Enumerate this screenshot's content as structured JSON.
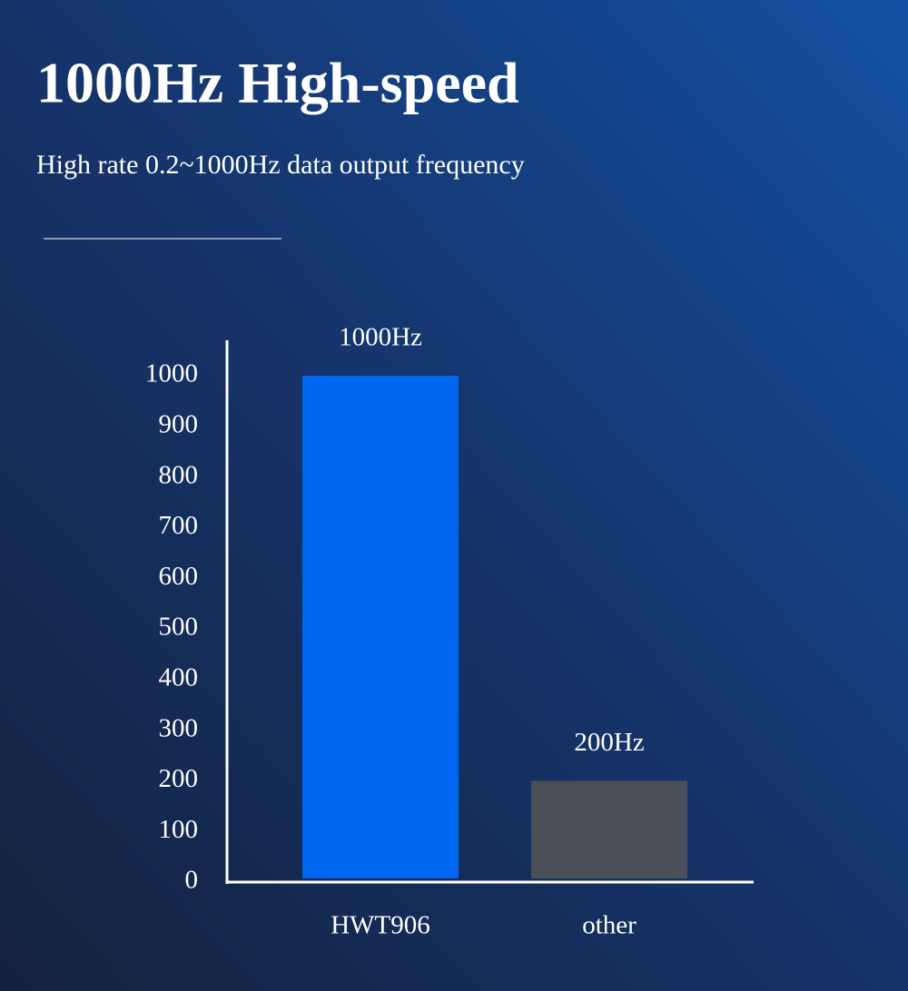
{
  "chart_data": {
    "type": "bar",
    "title": "1000Hz High-speed",
    "subtitle": "High rate 0.2~1000Hz data output frequency",
    "categories": [
      "HWT906",
      "other"
    ],
    "values": [
      1000,
      200
    ],
    "value_labels": [
      "1000Hz",
      "200Hz"
    ],
    "colors": [
      "#0066f0",
      "#4a4f58"
    ],
    "ylim": [
      0,
      1070
    ],
    "yticks": [
      0,
      100,
      200,
      300,
      400,
      500,
      600,
      700,
      800,
      900,
      1000
    ],
    "grid": false
  }
}
